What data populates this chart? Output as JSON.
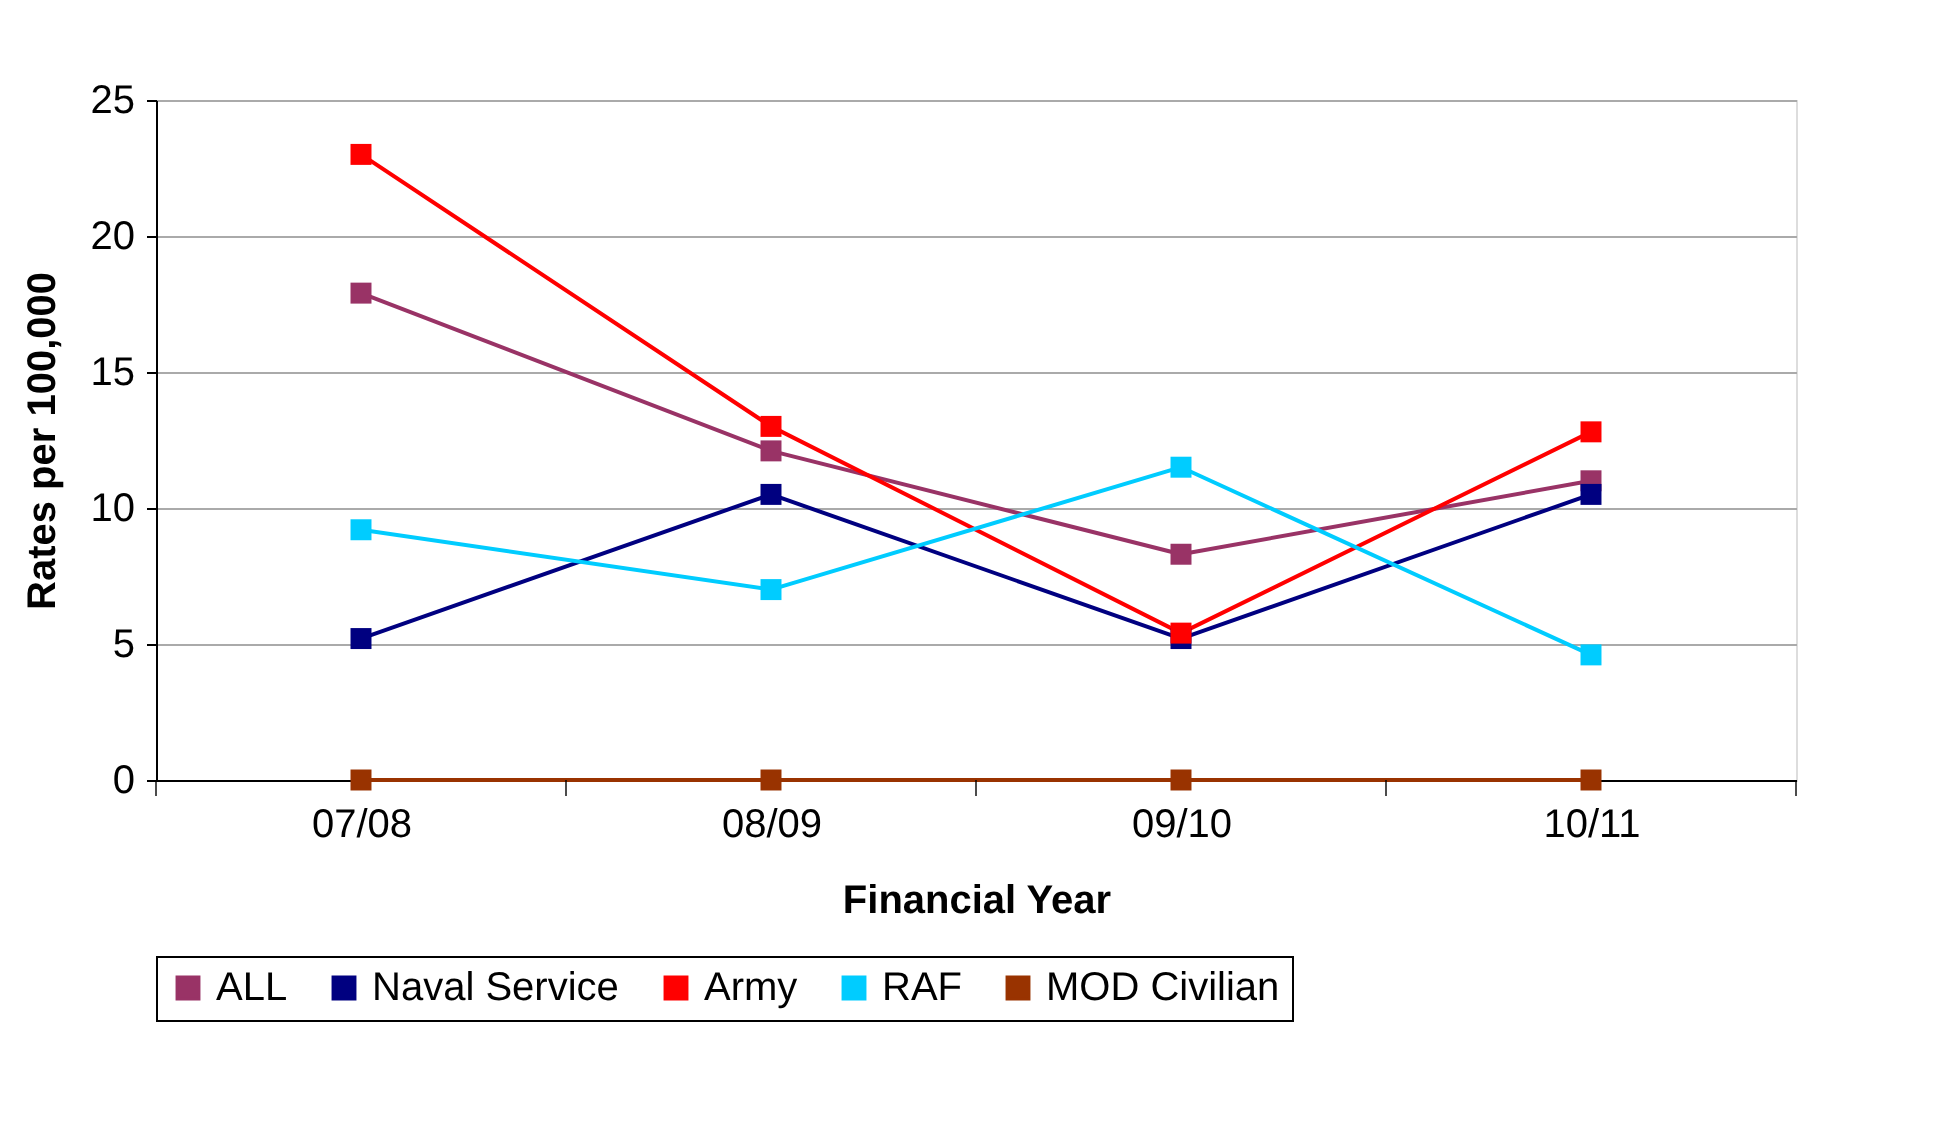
{
  "chart_data": {
    "type": "line",
    "xlabel": "Financial Year",
    "ylabel": "Rates per 100,000",
    "categories": [
      "07/08",
      "08/09",
      "09/10",
      "10/11"
    ],
    "series": [
      {
        "name": "ALL",
        "color": "#993366",
        "values": [
          17.9,
          12.1,
          8.3,
          11.0
        ]
      },
      {
        "name": "Naval Service",
        "color": "#000080",
        "values": [
          5.2,
          10.5,
          5.2,
          10.5
        ]
      },
      {
        "name": "Army",
        "color": "#ff0000",
        "values": [
          23.0,
          13.0,
          5.4,
          12.8
        ]
      },
      {
        "name": "RAF",
        "color": "#00ccff",
        "values": [
          9.2,
          7.0,
          11.5,
          4.6
        ]
      },
      {
        "name": "MOD Civilian",
        "color": "#993300",
        "values": [
          0,
          0,
          0,
          0
        ]
      }
    ],
    "ylim": [
      0,
      25
    ],
    "yticks": [
      0,
      5,
      10,
      15,
      20,
      25
    ],
    "grid": "y",
    "legend": "bottom",
    "marker": "square",
    "line_style": "solid"
  }
}
